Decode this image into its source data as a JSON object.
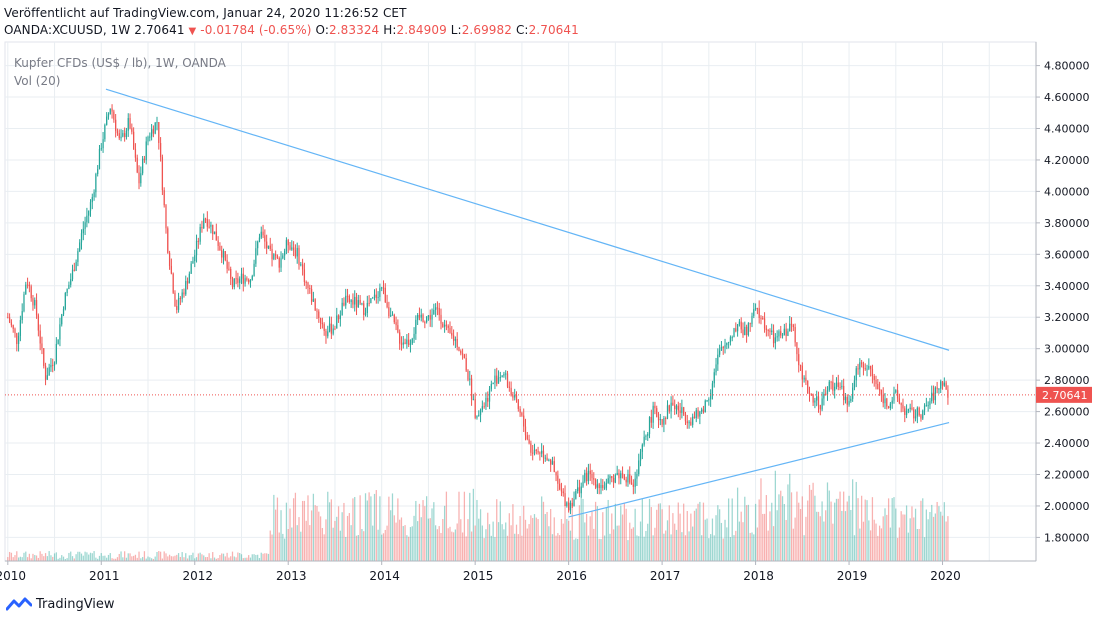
{
  "header": {
    "published": "Veröffentlicht auf TradingView.com, Januar 24, 2020 11:26:52 CET",
    "symbol": "OANDA:XCUUSD, 1W",
    "last": "2.70641",
    "change": "-0.01784 (-0.65%)",
    "o_label": "O:",
    "o": "2.83324",
    "h_label": "H:",
    "h": "2.84909",
    "l_label": "L:",
    "l": "2.69982",
    "c_label": "C:",
    "c": "2.70641"
  },
  "legend": {
    "series_title": "Kupfer CFDs (US$ / lb), 1W, OANDA",
    "volume_title": "Vol (20)"
  },
  "footer": {
    "brand": "TradingView"
  },
  "colors": {
    "up": "#26a69a",
    "down": "#ef5350",
    "trend": "#64b5f6",
    "grid": "#e9eef2",
    "axis": "#b2b5be"
  },
  "chart_data": {
    "type": "candlestick",
    "ylim": [
      1.65,
      4.95
    ],
    "y_ticks": [
      1.8,
      2.0,
      2.2,
      2.4,
      2.6,
      2.8,
      3.0,
      3.2,
      3.4,
      3.6,
      3.8,
      4.0,
      4.2,
      4.4,
      4.6,
      4.8
    ],
    "y_tick_labels": [
      "1.80000",
      "2.00000",
      "2.20000",
      "2.40000",
      "2.60000",
      "2.80000",
      "3.00000",
      "3.20000",
      "3.40000",
      "3.60000",
      "3.80000",
      "4.00000",
      "4.20000",
      "4.40000",
      "4.60000",
      "4.80000"
    ],
    "x_range": [
      2009.97,
      2021.0
    ],
    "x_ticks": [
      2010,
      2011,
      2012,
      2013,
      2014,
      2015,
      2016,
      2017,
      2018,
      2019,
      2020
    ],
    "x_tick_labels": [
      "2010",
      "2011",
      "2012",
      "2013",
      "2014",
      "2015",
      "2016",
      "2017",
      "2018",
      "2019",
      "2020"
    ],
    "last_price": 2.70641,
    "last_price_label": "2.70641",
    "price_path": [
      [
        2010.0,
        3.2
      ],
      [
        2010.1,
        3.05
      ],
      [
        2010.2,
        3.45
      ],
      [
        2010.3,
        3.25
      ],
      [
        2010.4,
        2.82
      ],
      [
        2010.5,
        2.95
      ],
      [
        2010.6,
        3.3
      ],
      [
        2010.7,
        3.5
      ],
      [
        2010.8,
        3.75
      ],
      [
        2010.9,
        3.95
      ],
      [
        2011.0,
        4.3
      ],
      [
        2011.1,
        4.55
      ],
      [
        2011.2,
        4.3
      ],
      [
        2011.3,
        4.45
      ],
      [
        2011.4,
        4.05
      ],
      [
        2011.5,
        4.35
      ],
      [
        2011.6,
        4.45
      ],
      [
        2011.7,
        3.7
      ],
      [
        2011.8,
        3.25
      ],
      [
        2011.9,
        3.4
      ],
      [
        2012.0,
        3.6
      ],
      [
        2012.1,
        3.85
      ],
      [
        2012.2,
        3.75
      ],
      [
        2012.3,
        3.6
      ],
      [
        2012.4,
        3.4
      ],
      [
        2012.5,
        3.45
      ],
      [
        2012.6,
        3.45
      ],
      [
        2012.7,
        3.75
      ],
      [
        2012.8,
        3.6
      ],
      [
        2012.9,
        3.55
      ],
      [
        2013.0,
        3.68
      ],
      [
        2013.1,
        3.6
      ],
      [
        2013.2,
        3.4
      ],
      [
        2013.3,
        3.25
      ],
      [
        2013.4,
        3.1
      ],
      [
        2013.5,
        3.15
      ],
      [
        2013.6,
        3.3
      ],
      [
        2013.7,
        3.3
      ],
      [
        2013.8,
        3.25
      ],
      [
        2013.9,
        3.3
      ],
      [
        2014.0,
        3.4
      ],
      [
        2014.1,
        3.2
      ],
      [
        2014.2,
        3.05
      ],
      [
        2014.3,
        3.05
      ],
      [
        2014.4,
        3.2
      ],
      [
        2014.5,
        3.2
      ],
      [
        2014.6,
        3.25
      ],
      [
        2014.7,
        3.1
      ],
      [
        2014.8,
        3.05
      ],
      [
        2014.9,
        2.9
      ],
      [
        2015.0,
        2.6
      ],
      [
        2015.1,
        2.65
      ],
      [
        2015.2,
        2.8
      ],
      [
        2015.3,
        2.85
      ],
      [
        2015.4,
        2.7
      ],
      [
        2015.5,
        2.55
      ],
      [
        2015.6,
        2.35
      ],
      [
        2015.7,
        2.35
      ],
      [
        2015.8,
        2.3
      ],
      [
        2015.9,
        2.1
      ],
      [
        2016.0,
        2.0
      ],
      [
        2016.1,
        2.1
      ],
      [
        2016.2,
        2.2
      ],
      [
        2016.3,
        2.15
      ],
      [
        2016.4,
        2.12
      ],
      [
        2016.5,
        2.2
      ],
      [
        2016.6,
        2.2
      ],
      [
        2016.7,
        2.12
      ],
      [
        2016.8,
        2.4
      ],
      [
        2016.9,
        2.6
      ],
      [
        2017.0,
        2.55
      ],
      [
        2017.1,
        2.65
      ],
      [
        2017.2,
        2.6
      ],
      [
        2017.3,
        2.55
      ],
      [
        2017.4,
        2.58
      ],
      [
        2017.5,
        2.7
      ],
      [
        2017.6,
        2.95
      ],
      [
        2017.7,
        3.05
      ],
      [
        2017.8,
        3.15
      ],
      [
        2017.9,
        3.1
      ],
      [
        2018.0,
        3.25
      ],
      [
        2018.1,
        3.15
      ],
      [
        2018.2,
        3.05
      ],
      [
        2018.3,
        3.1
      ],
      [
        2018.4,
        3.15
      ],
      [
        2018.5,
        2.8
      ],
      [
        2018.6,
        2.7
      ],
      [
        2018.7,
        2.65
      ],
      [
        2018.8,
        2.78
      ],
      [
        2018.9,
        2.75
      ],
      [
        2019.0,
        2.65
      ],
      [
        2019.1,
        2.9
      ],
      [
        2019.2,
        2.9
      ],
      [
        2019.3,
        2.75
      ],
      [
        2019.4,
        2.65
      ],
      [
        2019.5,
        2.7
      ],
      [
        2019.6,
        2.6
      ],
      [
        2019.7,
        2.58
      ],
      [
        2019.8,
        2.6
      ],
      [
        2019.9,
        2.7
      ],
      [
        2020.0,
        2.8
      ],
      [
        2020.06,
        2.70641
      ]
    ],
    "trendlines": [
      {
        "from": [
          2011.05,
          4.65
        ],
        "to": [
          2020.07,
          2.99
        ]
      },
      {
        "from": [
          2016.0,
          1.93
        ],
        "to": [
          2020.07,
          2.53
        ]
      }
    ]
  }
}
